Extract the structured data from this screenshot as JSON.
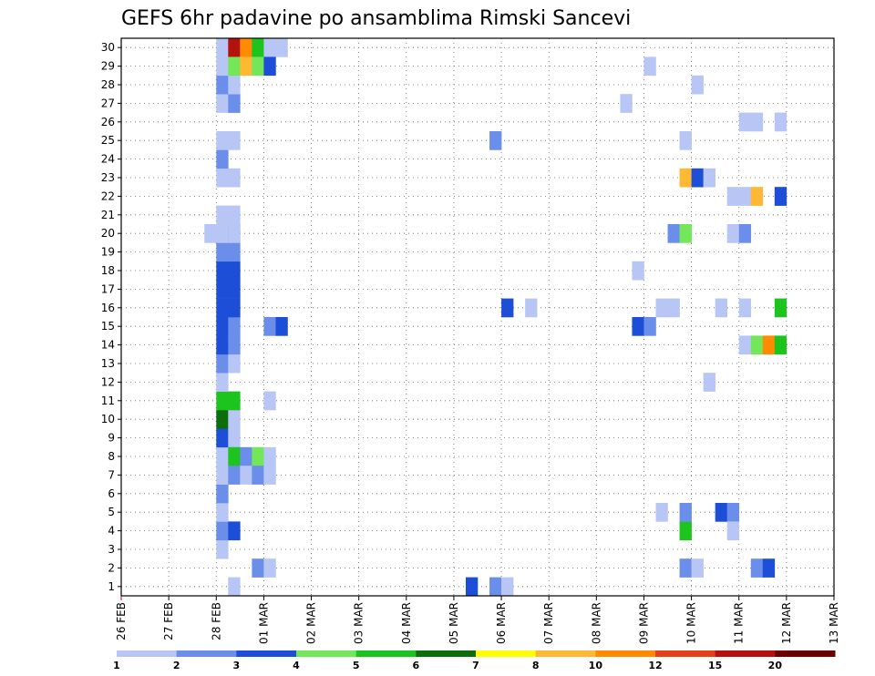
{
  "chart_data": {
    "type": "heatmap",
    "title": "GEFS 6hr padavine po ansamblima Rimski Sancevi",
    "xlabel": "",
    "ylabel": "",
    "x_tick_labels": [
      "26 FEB",
      "27 FEB",
      "28 FEB",
      "01 MAR",
      "02 MAR",
      "03 MAR",
      "04 MAR",
      "05 MAR",
      "06 MAR",
      "07 MAR",
      "08 MAR",
      "09 MAR",
      "10 MAR",
      "11 MAR",
      "12 MAR",
      "13 MAR"
    ],
    "y_tick_labels": [
      "1",
      "2",
      "3",
      "4",
      "5",
      "6",
      "7",
      "8",
      "9",
      "10",
      "11",
      "12",
      "13",
      "14",
      "15",
      "16",
      "17",
      "18",
      "19",
      "20",
      "21",
      "22",
      "23",
      "24",
      "25",
      "26",
      "27",
      "28",
      "29",
      "30"
    ],
    "x_range_days": [
      0,
      15
    ],
    "y_range": [
      0,
      30
    ],
    "time_step_hours": 6,
    "grid": true,
    "legend_position": "bottom",
    "legend": {
      "labels": [
        "1",
        "2",
        "3",
        "4",
        "5",
        "6",
        "7",
        "8",
        "10",
        "12",
        "15",
        "20"
      ],
      "colors": [
        "#b8c6f5",
        "#6b8eeb",
        "#1c4ed8",
        "#73e65a",
        "#1ec41e",
        "#0b6e0b",
        "#ffff00",
        "#ffb833",
        "#ff8c00",
        "#e6401a",
        "#b3120d",
        "#6b0000"
      ]
    },
    "cells": [
      [
        8,
        30,
        1
      ],
      [
        9,
        30,
        11
      ],
      [
        10,
        30,
        9
      ],
      [
        11,
        30,
        5
      ],
      [
        12,
        30,
        1
      ],
      [
        13,
        30,
        1
      ],
      [
        9,
        29,
        4
      ],
      [
        10,
        29,
        8
      ],
      [
        11,
        29,
        4
      ],
      [
        12,
        29,
        3
      ],
      [
        8,
        29,
        4
      ],
      [
        9,
        8,
        5
      ],
      [
        10,
        8,
        2
      ],
      [
        11,
        8,
        4
      ],
      [
        12,
        8,
        1
      ],
      [
        9,
        7,
        2
      ],
      [
        10,
        7,
        1
      ],
      [
        11,
        7,
        2
      ],
      [
        12,
        7,
        1
      ],
      [
        7,
        20,
        1
      ],
      [
        9,
        20,
        1
      ],
      [
        12,
        15,
        2
      ],
      [
        13,
        15,
        3
      ],
      [
        12,
        11,
        1
      ],
      [
        11,
        2,
        2
      ],
      [
        12,
        2,
        1
      ],
      [
        29,
        1,
        3
      ],
      [
        31,
        1,
        2
      ],
      [
        32,
        1,
        1
      ],
      [
        31,
        25,
        2
      ],
      [
        32,
        16,
        3
      ],
      [
        34,
        16,
        1
      ],
      [
        42,
        27,
        1
      ],
      [
        44,
        29,
        1
      ],
      [
        43,
        18,
        1
      ],
      [
        43,
        15,
        3
      ],
      [
        44,
        15,
        2
      ],
      [
        45,
        16,
        1
      ],
      [
        46,
        16,
        1
      ],
      [
        46,
        20,
        2
      ],
      [
        47,
        20,
        4
      ],
      [
        47,
        25,
        1
      ],
      [
        48,
        28,
        1
      ],
      [
        47,
        23,
        8
      ],
      [
        48,
        23,
        3
      ],
      [
        49,
        23,
        1
      ],
      [
        47,
        4,
        5
      ],
      [
        47,
        5,
        2
      ],
      [
        45,
        5,
        1
      ],
      [
        47,
        2,
        2
      ],
      [
        48,
        2,
        1
      ],
      [
        49,
        12,
        1
      ],
      [
        50,
        5,
        3
      ],
      [
        51,
        5,
        2
      ],
      [
        51,
        4,
        1
      ],
      [
        50,
        16,
        1
      ],
      [
        51,
        20,
        1
      ],
      [
        52,
        20,
        2
      ],
      [
        51,
        22,
        1
      ],
      [
        52,
        22,
        1
      ],
      [
        53,
        22,
        8
      ],
      [
        52,
        26,
        1
      ],
      [
        53,
        26,
        1
      ],
      [
        55,
        26,
        1
      ],
      [
        52,
        16,
        1
      ],
      [
        52,
        14,
        1
      ],
      [
        53,
        14,
        4
      ],
      [
        54,
        14,
        9
      ],
      [
        55,
        14,
        5
      ],
      [
        55,
        16,
        5
      ],
      [
        55,
        22,
        3
      ],
      [
        53,
        2,
        2
      ],
      [
        54,
        2,
        3
      ]
    ],
    "member_spans": [
      [
        8,
        1,
        [
          0,
          0,
          1,
          2,
          1,
          2,
          1,
          1,
          3,
          6,
          5,
          1,
          2,
          3,
          3,
          3,
          3,
          3,
          2,
          1,
          1,
          0,
          1,
          2,
          1,
          0,
          1,
          2,
          1,
          0
        ]
      ]
    ]
  }
}
